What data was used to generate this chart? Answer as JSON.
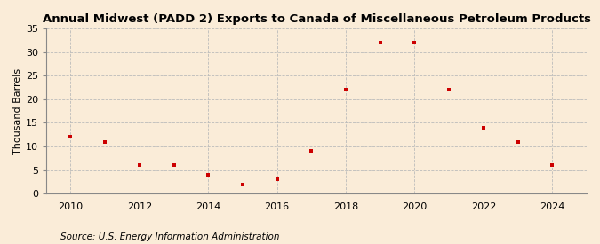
{
  "title": "Annual Midwest (PADD 2) Exports to Canada of Miscellaneous Petroleum Products",
  "ylabel": "Thousand Barrels",
  "source": "Source: U.S. Energy Information Administration",
  "background_color": "#faecd8",
  "plot_bg_color": "#faecd8",
  "x_data": [
    2010,
    2011,
    2012,
    2013,
    2014,
    2015,
    2016,
    2017,
    2018,
    2019,
    2020,
    2021,
    2022,
    2023,
    2024
  ],
  "y_data": [
    12,
    11,
    6,
    6,
    4,
    2,
    3,
    9,
    22,
    32,
    32,
    22,
    14,
    11,
    6
  ],
  "marker_color": "#cc0000",
  "marker": "s",
  "marker_size": 3,
  "ylim": [
    0,
    35
  ],
  "yticks": [
    0,
    5,
    10,
    15,
    20,
    25,
    30,
    35
  ],
  "xlim": [
    2009.3,
    2025.0
  ],
  "xticks": [
    2010,
    2012,
    2014,
    2016,
    2018,
    2020,
    2022,
    2024
  ],
  "grid_color": "#bbbbbb",
  "grid_style": "--",
  "title_fontsize": 9.5,
  "label_fontsize": 8,
  "tick_fontsize": 8,
  "source_fontsize": 7.5
}
